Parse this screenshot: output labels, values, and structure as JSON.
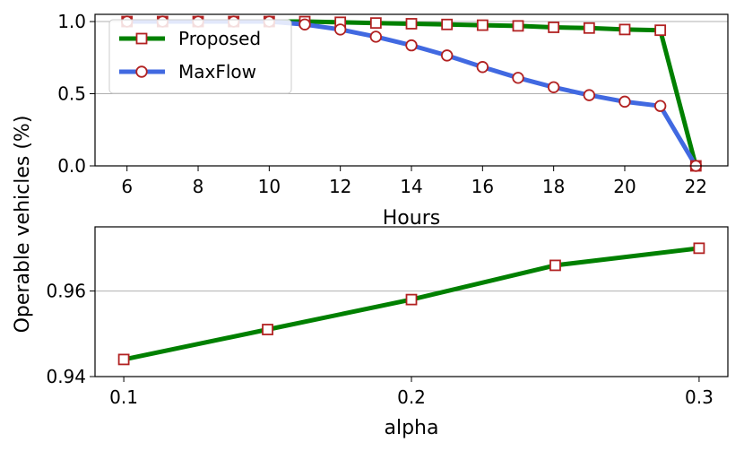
{
  "colors": {
    "proposed_line": "#008000",
    "maxflow_line": "#4169e1",
    "marker_edge": "#b22222",
    "marker_face": "#ffffff",
    "grid": "#b0b0b0"
  },
  "shared_ylabel": "Operable vehicles (%)",
  "chart_data": [
    {
      "type": "line",
      "xlabel": "Hours",
      "ylabel": "Operable vehicles (%)",
      "xlim": [
        5.1,
        22.9
      ],
      "ylim": [
        0,
        1.05
      ],
      "xticks": [
        "6",
        "8",
        "10",
        "12",
        "14",
        "16",
        "18",
        "20",
        "22"
      ],
      "yticks": [
        "0.0",
        "0.5",
        "1.0"
      ],
      "grid": "horizontal",
      "legend_position": "top-left",
      "x": [
        6,
        7,
        8,
        9,
        10,
        11,
        12,
        13,
        14,
        15,
        16,
        17,
        18,
        19,
        20,
        21,
        22
      ],
      "series": [
        {
          "name": "Proposed",
          "marker": "square",
          "values": [
            1.0,
            1.0,
            1.0,
            1.0,
            1.0,
            1.0,
            0.995,
            0.99,
            0.985,
            0.98,
            0.975,
            0.97,
            0.96,
            0.955,
            0.945,
            0.94,
            0.0
          ]
        },
        {
          "name": "MaxFlow",
          "marker": "circle",
          "values": [
            1.0,
            1.0,
            1.0,
            1.0,
            1.0,
            0.98,
            0.945,
            0.895,
            0.835,
            0.765,
            0.685,
            0.61,
            0.545,
            0.49,
            0.445,
            0.415,
            0.0
          ]
        }
      ]
    },
    {
      "type": "line",
      "xlabel": "alpha",
      "ylabel": "Operable vehicles (%)",
      "xlim": [
        0.09,
        0.31
      ],
      "ylim": [
        0.94,
        0.975
      ],
      "xticks": [
        "0.1",
        "0.2",
        "0.3"
      ],
      "yticks": [
        "0.94",
        "0.96"
      ],
      "grid": "horizontal",
      "x": [
        0.1,
        0.15,
        0.2,
        0.25,
        0.3
      ],
      "series": [
        {
          "marker": "square",
          "values": [
            0.944,
            0.951,
            0.958,
            0.966,
            0.97
          ]
        }
      ]
    }
  ]
}
